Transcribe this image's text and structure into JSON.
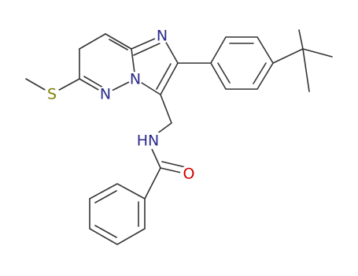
{
  "atoms": [
    {
      "label": "S",
      "color": "#7f7f00"
    },
    {
      "label": "N",
      "color": "#2a2a8a"
    },
    {
      "label": "N",
      "color": "#2a2a8a"
    },
    {
      "label": "N",
      "color": "#2a2a8a"
    },
    {
      "label": "HN",
      "color": "#2a2a8a"
    },
    {
      "label": "O",
      "color": "#d00000"
    }
  ]
}
